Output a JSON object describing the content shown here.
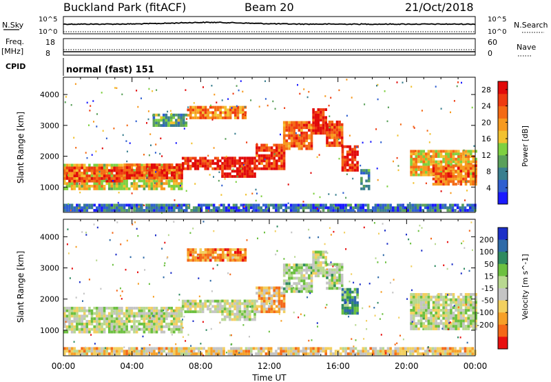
{
  "header": {
    "station": "Buckland Park (fitACF)",
    "beam": "Beam 20",
    "date": "21/Oct/2018"
  },
  "top_panels": {
    "nsky_label": "N.Sky",
    "nsky_top": "10^5",
    "nsky_bottom": "10^0",
    "nsearch_label": "N.Search",
    "nsearch_top": "10^5",
    "nsearch_bottom": "10^0",
    "freq_label": "Freq.",
    "freq_unit": "[MHz]",
    "freq_top": "18",
    "freq_bottom": "8",
    "nave_label": "Nave",
    "nave_top": "60",
    "nave_bottom": "0",
    "cpid_label": "CPID",
    "cpid_value": "normal (fast) 151"
  },
  "chart_data": [
    {
      "type": "heatmap",
      "name": "power",
      "ylabel": "Slant Range [km]",
      "y_ticks": [
        1000,
        2000,
        3000,
        4000
      ],
      "ylim": [
        180,
        4560
      ],
      "xlim_hours": [
        0,
        24
      ],
      "colorbar_label": "Power [dB]",
      "colorbar_ticks": [
        4,
        8,
        12,
        16,
        20,
        24,
        28
      ],
      "colorbar_range": [
        0,
        30
      ],
      "colors": [
        "#1a1aff",
        "#2f5fd0",
        "#3a7f8f",
        "#5aa05a",
        "#7ed040",
        "#f2c230",
        "#f79a1f",
        "#f46a14",
        "#ee3a10",
        "#e10a0a"
      ],
      "echo_regions": [
        {
          "t": [
            0,
            6.9
          ],
          "r": [
            900,
            1750
          ],
          "level": 0.55
        },
        {
          "t": [
            0,
            3.5
          ],
          "r": [
            1150,
            1650
          ],
          "level": 0.8
        },
        {
          "t": [
            3.5,
            6.9
          ],
          "r": [
            1250,
            1700
          ],
          "level": 0.85
        },
        {
          "t": [
            6.9,
            9.2
          ],
          "r": [
            1550,
            1950
          ],
          "level": 0.9
        },
        {
          "t": [
            9.2,
            11.2
          ],
          "r": [
            1300,
            1900
          ],
          "level": 0.95
        },
        {
          "t": [
            11.2,
            12.8
          ],
          "r": [
            1550,
            2350
          ],
          "level": 0.85
        },
        {
          "t": [
            12.8,
            14.5
          ],
          "r": [
            2200,
            3100
          ],
          "level": 0.75
        },
        {
          "t": [
            14.5,
            15.3
          ],
          "r": [
            2700,
            3500
          ],
          "level": 0.9
        },
        {
          "t": [
            15.3,
            16.2
          ],
          "r": [
            2300,
            3100
          ],
          "level": 0.8
        },
        {
          "t": [
            16.2,
            17.1
          ],
          "r": [
            1500,
            2300
          ],
          "level": 0.9
        },
        {
          "t": [
            7.2,
            10.6
          ],
          "r": [
            3200,
            3600
          ],
          "level": 0.7
        },
        {
          "t": [
            5.2,
            7.2
          ],
          "r": [
            2950,
            3350
          ],
          "level": 0.35
        },
        {
          "t": [
            20.2,
            24
          ],
          "r": [
            1350,
            2150
          ],
          "level": 0.6
        },
        {
          "t": [
            21.5,
            24
          ],
          "r": [
            1050,
            1650
          ],
          "level": 0.75
        },
        {
          "t": [
            0,
            24
          ],
          "r": [
            200,
            380
          ],
          "level": 0.2
        },
        {
          "t": [
            17.3,
            17.8
          ],
          "r": [
            900,
            1500
          ],
          "level": 0.3
        }
      ]
    },
    {
      "type": "heatmap",
      "name": "velocity",
      "ylabel": "Slant Range [km]",
      "y_ticks": [
        1000,
        2000,
        3000,
        4000
      ],
      "ylim": [
        180,
        4560
      ],
      "xlim_hours": [
        0,
        24
      ],
      "x_ticks": [
        "00:00",
        "04:00",
        "08:00",
        "12:00",
        "16:00",
        "20:00",
        "00:00"
      ],
      "xlabel": "Time UT",
      "colorbar_label": "Velocity [m s^-1]",
      "colorbar_ticks": [
        "200",
        "100",
        "50",
        "15",
        "-15",
        "-50",
        "-100",
        "-200"
      ],
      "colors": [
        "#1c2fc8",
        "#2f6aa8",
        "#2f8a60",
        "#6cc040",
        "#b8d890",
        "#c4c4c4",
        "#f2d060",
        "#f6a028",
        "#f46818",
        "#e81010"
      ],
      "echo_regions": [
        {
          "t": [
            0,
            6.9
          ],
          "r": [
            900,
            1750
          ],
          "level": 0.5
        },
        {
          "t": [
            6.9,
            9.2
          ],
          "r": [
            1550,
            1950
          ],
          "level": 0.5
        },
        {
          "t": [
            9.2,
            11.2
          ],
          "r": [
            1300,
            1900
          ],
          "level": 0.5
        },
        {
          "t": [
            11.2,
            12.8
          ],
          "r": [
            1550,
            2350
          ],
          "level": 0.7
        },
        {
          "t": [
            12.8,
            14.5
          ],
          "r": [
            2200,
            3100
          ],
          "level": 0.45
        },
        {
          "t": [
            14.5,
            15.3
          ],
          "r": [
            2700,
            3500
          ],
          "level": 0.5
        },
        {
          "t": [
            15.3,
            16.2
          ],
          "r": [
            2300,
            3100
          ],
          "level": 0.45
        },
        {
          "t": [
            16.2,
            17.1
          ],
          "r": [
            1500,
            2300
          ],
          "level": 0.3
        },
        {
          "t": [
            7.2,
            10.6
          ],
          "r": [
            3200,
            3600
          ],
          "level": 0.75
        },
        {
          "t": [
            20.2,
            24
          ],
          "r": [
            1000,
            2150
          ],
          "level": 0.5
        },
        {
          "t": [
            0,
            24
          ],
          "r": [
            200,
            380
          ],
          "level": 0.65
        }
      ]
    }
  ]
}
